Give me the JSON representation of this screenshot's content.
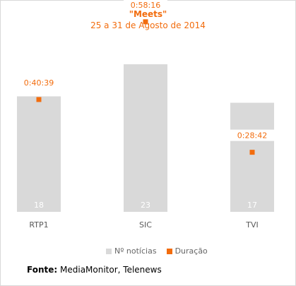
{
  "title": "\"Meets\"",
  "subtitle": "25 a 31 de Agosto de 2014",
  "colors": {
    "bar": "#d9d9d9",
    "accent": "#f26c0d",
    "bar_label": "#ffffff",
    "axis_label": "#595959"
  },
  "chart_data": {
    "type": "bar",
    "categories": [
      "RTP1",
      "SIC",
      "TVI"
    ],
    "series": [
      {
        "name": "Nº notícias",
        "values": [
          18,
          23,
          17
        ],
        "kind": "bar"
      },
      {
        "name": "Duração",
        "values": [
          "0:40:39",
          "0:58:16",
          "0:28:42"
        ],
        "kind": "scatter",
        "marker": "square"
      }
    ],
    "ylim": [
      0,
      23
    ],
    "duration_range_seconds": [
      0,
      3600
    ],
    "grid": false,
    "legend_position": "bottom"
  },
  "legend": {
    "bars_label": "Nº notícias",
    "points_label": "Duração"
  },
  "source": {
    "label": "Fonte:",
    "text": "MediaMonitor, Telenews"
  }
}
